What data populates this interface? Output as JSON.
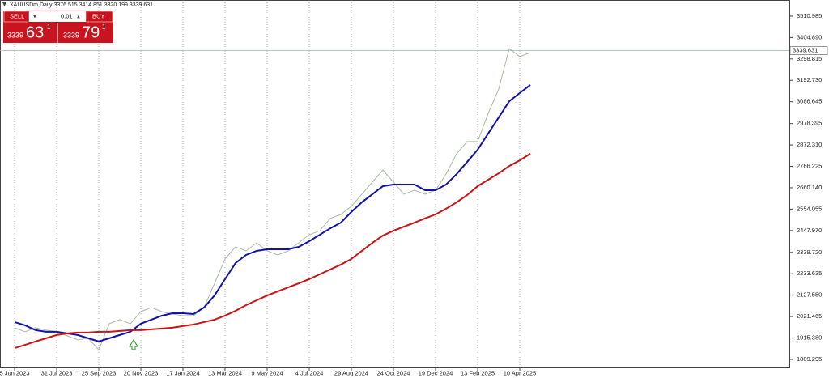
{
  "chart_data": {
    "type": "line",
    "title": "XAUUSDm,Daily  3376.515 3414.851 3320.199 3339.631",
    "categories": [
      "5 Jun 2023",
      null,
      null,
      null,
      "31 Jul 2023",
      null,
      null,
      null,
      "25 Sep 2023",
      null,
      null,
      null,
      "20 Nov 2023",
      null,
      null,
      null,
      "17 Jan 2024",
      null,
      null,
      null,
      "13 Mar 2024",
      null,
      null,
      null,
      "9 May 2024",
      null,
      null,
      null,
      "4 Jul 2024",
      null,
      null,
      null,
      "29 Aug 2024",
      null,
      null,
      null,
      "24 Oct 2024",
      null,
      null,
      null,
      "19 Dec 2024",
      null,
      null,
      null,
      "13 Feb 2025",
      null,
      null,
      null,
      "10 Apr 2025",
      null
    ],
    "series": [
      {
        "color": "#a9b9a4",
        "values": [
          1966,
          1946,
          1966,
          1954,
          1946,
          1926,
          1906,
          1914,
          1857,
          1986,
          2006,
          1986,
          2046,
          2066,
          2046,
          2034,
          2026,
          2026,
          2066,
          2186,
          2307,
          2367,
          2347,
          2387,
          2347,
          2327,
          2347,
          2387,
          2427,
          2447,
          2508,
          2528,
          2568,
          2628,
          2688,
          2748,
          2688,
          2628,
          2648,
          2628,
          2648,
          2728,
          2829,
          2889,
          2889,
          3029,
          3150,
          3350,
          3310,
          3330
        ]
      },
      {
        "color": "#1212a8",
        "values": [
          1994,
          1978,
          1954,
          1946,
          1946,
          1938,
          1930,
          1914,
          1898,
          1914,
          1930,
          1946,
          1986,
          2006,
          2026,
          2038,
          2038,
          2034,
          2066,
          2126,
          2207,
          2287,
          2327,
          2347,
          2355,
          2355,
          2355,
          2367,
          2395,
          2427,
          2459,
          2487,
          2540,
          2588,
          2628,
          2668,
          2676,
          2676,
          2676,
          2648,
          2648,
          2676,
          2728,
          2788,
          2849,
          2929,
          3009,
          3089,
          3130,
          3170
        ]
      },
      {
        "color": "#c81414",
        "values": [
          1865,
          1881,
          1898,
          1914,
          1930,
          1938,
          1942,
          1942,
          1946,
          1946,
          1950,
          1954,
          1954,
          1958,
          1962,
          1966,
          1974,
          1982,
          1994,
          2006,
          2026,
          2050,
          2078,
          2102,
          2126,
          2146,
          2166,
          2186,
          2207,
          2231,
          2255,
          2279,
          2307,
          2347,
          2387,
          2423,
          2447,
          2467,
          2487,
          2508,
          2528,
          2556,
          2588,
          2624,
          2668,
          2700,
          2732,
          2768,
          2796,
          2829
        ]
      }
    ],
    "current_price": 3339.631,
    "ylim": [
      1765,
      3591
    ],
    "yticks": [
      3510.985,
      {
        "value": 3404.89,
        "label": "3404.890"
      },
      3298.815,
      {
        "value": 3192.73,
        "label": "3192.730"
      },
      3086.645,
      2978.395,
      {
        "value": 2872.31,
        "label": "2872.310"
      },
      2766.225,
      {
        "value": 2660.14,
        "label": "2660.140"
      },
      2554.055,
      {
        "value": 2447.97,
        "label": "2447.970"
      },
      {
        "value": 2339.72,
        "label": "2339.720"
      },
      2233.635,
      {
        "value": 2127.55,
        "label": "2127.550"
      },
      2021.465,
      {
        "value": 1915.38,
        "label": "1915.380"
      },
      1809.295
    ],
    "grid": true
  },
  "trade_panel": {
    "sell": "SELL",
    "lot": "0.01",
    "buy": "BUY",
    "sell_price": {
      "base": "3339",
      "pips": "63",
      "fraction": "1"
    },
    "buy_price": {
      "base": "3339",
      "pips": "79",
      "fraction": "1"
    }
  }
}
